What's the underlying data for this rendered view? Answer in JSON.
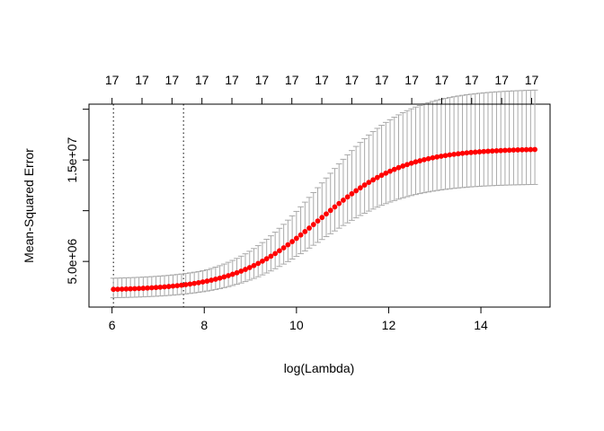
{
  "chart_data": {
    "type": "scatter",
    "title": "",
    "xlabel": "log(Lambda)",
    "ylabel": "Mean-Squared Error",
    "xlim": [
      5.5,
      15.5
    ],
    "ylim": [
      500000,
      20500000
    ],
    "x_ticks": [
      6,
      8,
      10,
      12,
      14
    ],
    "x_tick_labels": [
      "6",
      "8",
      "10",
      "12",
      "14"
    ],
    "y_ticks": [
      5000000,
      15000000
    ],
    "y_tick_labels": [
      "5.0e+06",
      "1.5e+07"
    ],
    "y_minor_ticks": [
      10000000,
      20000000
    ],
    "top_ticks": [
      6.0,
      6.65,
      7.3,
      7.95,
      8.6,
      9.25,
      9.9,
      10.55,
      11.2,
      11.85,
      12.5,
      13.15,
      13.8,
      14.45,
      15.1
    ],
    "top_tick_labels": [
      "17",
      "17",
      "17",
      "17",
      "17",
      "17",
      "17",
      "17",
      "17",
      "17",
      "17",
      "17",
      "17",
      "17",
      "17"
    ],
    "vlines": [
      6.03,
      7.55
    ],
    "points": {
      "count": 100,
      "x_start": 6.03,
      "x_end": 15.17,
      "curve": {
        "y_min": 2140000,
        "y_max": 16120000,
        "midpoint": 10.5,
        "scale": 0.92,
        "error_low_ratio": 0.38,
        "error_high_min": 1100000,
        "error_high_ratio": 0.365
      }
    },
    "colors": {
      "points": "#ff0000",
      "error_bars": "#a9a9a9",
      "vlines": "#000000",
      "axes": "#000000"
    },
    "grid": false,
    "legend": "none"
  }
}
